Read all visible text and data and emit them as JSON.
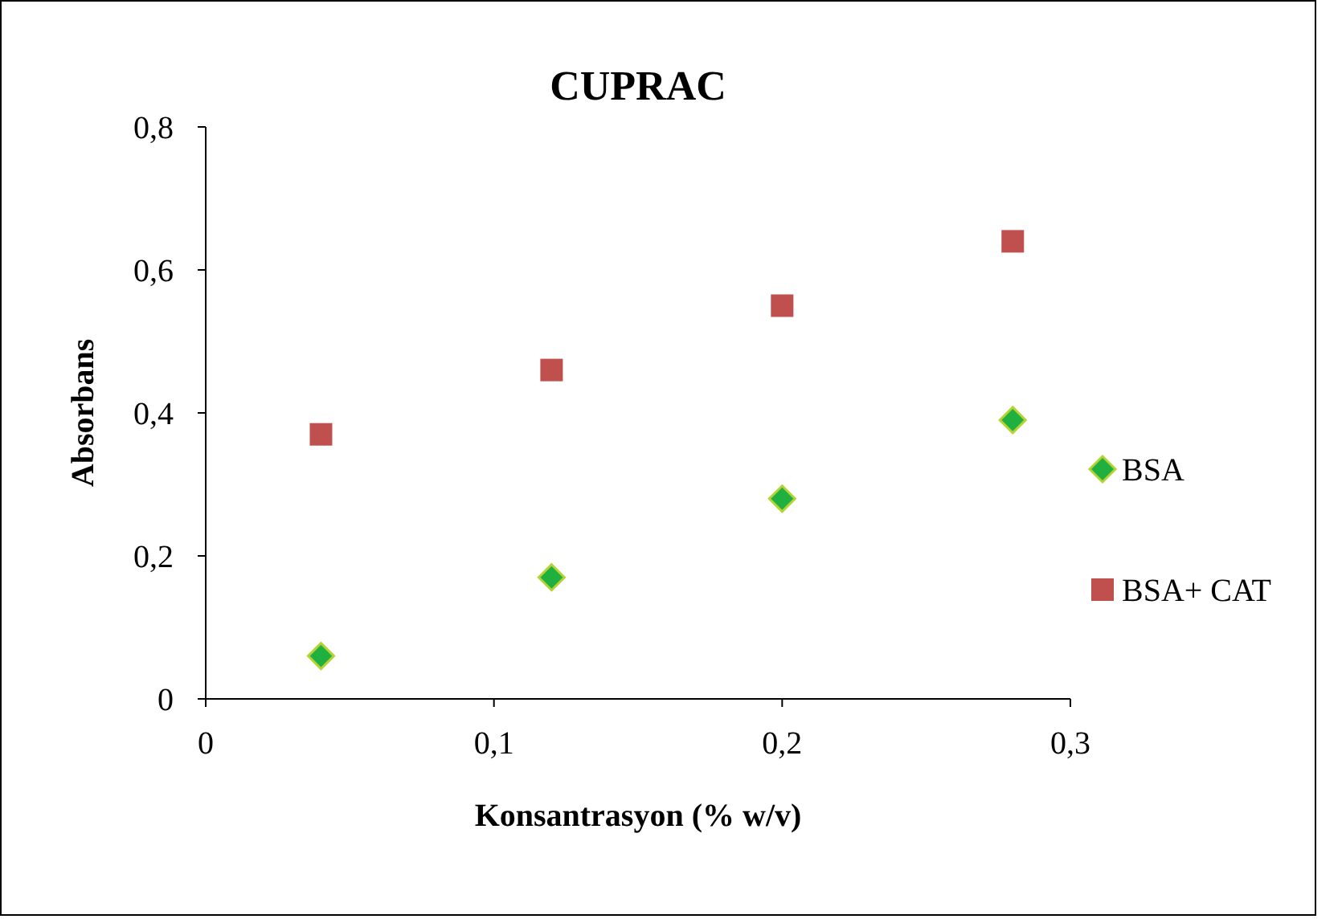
{
  "chart_data": {
    "type": "scatter",
    "title": "CUPRAC",
    "xlabel": "Konsantrasyon (% w/v)",
    "ylabel": "Absorbans",
    "xlim": [
      0,
      0.3
    ],
    "xticks": [
      0,
      {
        "value": 0.1,
        "label": "0,1"
      },
      {
        "value": 0.2,
        "label": "0,2"
      },
      {
        "value": 0.3,
        "label": "0,3"
      }
    ],
    "ylim": [
      0,
      0.8
    ],
    "yticks": [
      0,
      {
        "value": 0.2,
        "label": "0,2"
      },
      {
        "value": 0.4,
        "label": "0,4"
      },
      {
        "value": 0.6,
        "label": "0,6"
      },
      {
        "value": 0.8,
        "label": "0,8"
      }
    ],
    "grid": false,
    "legend": "right",
    "series": [
      {
        "name": "BSA",
        "color": "#1fb040",
        "marker": "diamond",
        "x": [
          0.04,
          0.12,
          0.2,
          0.28
        ],
        "values": [
          0.06,
          0.17,
          0.28,
          0.39
        ]
      },
      {
        "name": "BSA+ CAT",
        "color": "#c0504d",
        "marker": "square",
        "x": [
          0.04,
          0.12,
          0.2,
          0.28
        ],
        "values": [
          0.37,
          0.46,
          0.55,
          0.64
        ]
      }
    ]
  }
}
